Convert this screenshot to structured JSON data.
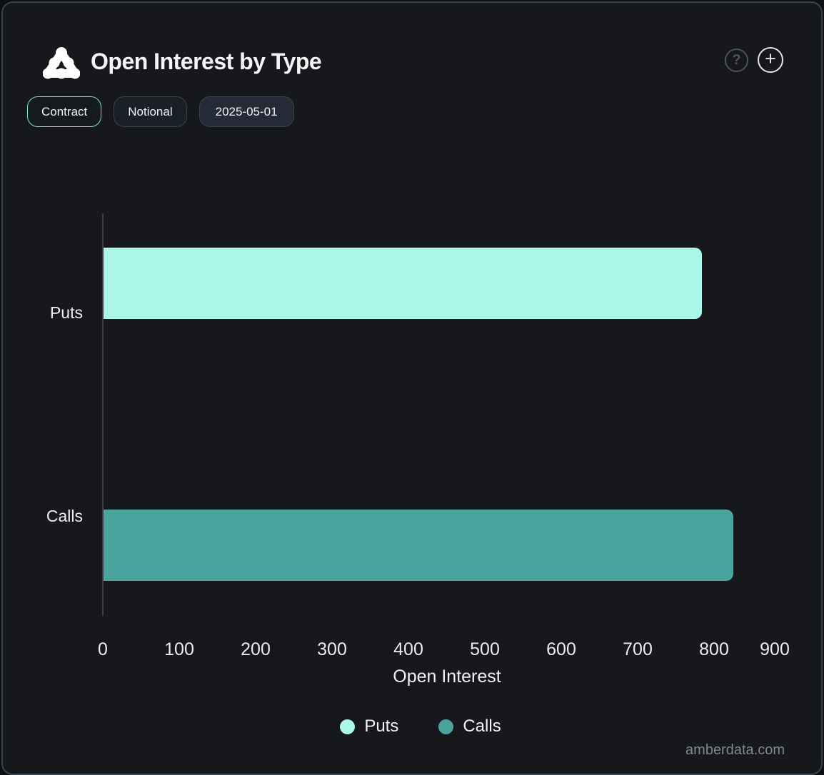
{
  "header": {
    "title": "Open Interest by Type",
    "help_label": "?",
    "add_label": "+"
  },
  "toolbar": {
    "buttons": [
      {
        "label": "Contract",
        "active": true
      },
      {
        "label": "Notional",
        "active": false
      },
      {
        "label": "2025-05-01",
        "active": false
      }
    ]
  },
  "chart_data": {
    "type": "bar",
    "orientation": "horizontal",
    "title": "Open Interest by Type",
    "categories": [
      "Puts",
      "Calls"
    ],
    "series": [
      {
        "name": "Puts",
        "color": "#abf7e9",
        "values": [
          783,
          null
        ]
      },
      {
        "name": "Calls",
        "color": "#4aa39c",
        "values": [
          null,
          824
        ]
      }
    ],
    "xlabel": "Open Interest",
    "ylabel": "",
    "xlim": [
      0,
      900
    ],
    "xticks": [
      0,
      100,
      200,
      300,
      400,
      500,
      600,
      700,
      800,
      900
    ],
    "grid": false,
    "legend_position": "bottom"
  },
  "watermark": "amberdata.com",
  "colors": {
    "accent": "#79ebcc",
    "puts": "#abf7e9",
    "calls": "#4aa39c",
    "card_bg": "#17181c",
    "card_border": "#39434f"
  }
}
